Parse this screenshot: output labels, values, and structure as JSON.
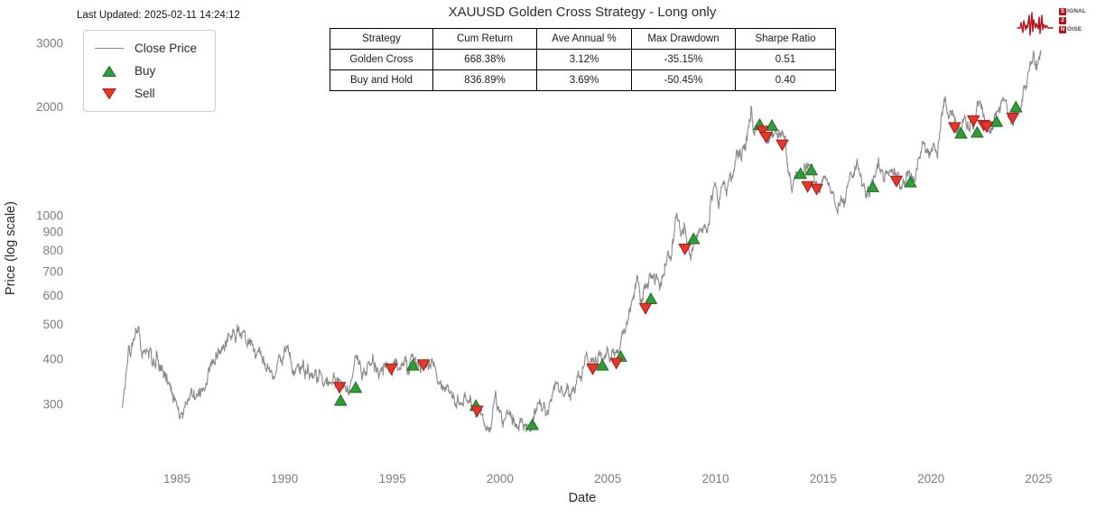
{
  "header": {
    "last_updated": "Last Updated: 2025-02-11 14:24:12",
    "title": "XAUUSD Golden Cross Strategy - Long only"
  },
  "logo": {
    "signal_first": "S",
    "signal_rest": "IGNAL",
    "two": "2",
    "noise_first": "N",
    "noise_rest": "OISE",
    "brand_color": "#b5121b"
  },
  "legend": {
    "close_price": "Close Price",
    "buy": "Buy",
    "sell": "Sell"
  },
  "stats_table": {
    "headers": [
      "Strategy",
      "Cum Return",
      "Ave Annual %",
      "Max Drawdown",
      "Sharpe Ratio"
    ],
    "rows": [
      [
        "Golden Cross",
        "668.38%",
        "3.12%",
        "-35.15%",
        "0.51"
      ],
      [
        "Buy and Hold",
        "836.89%",
        "3.69%",
        "-50.45%",
        "0.40"
      ]
    ]
  },
  "chart_data": {
    "type": "line",
    "title": "XAUUSD Golden Cross Strategy - Long only",
    "xlabel": "Date",
    "ylabel": "Price (log scale)",
    "yscale": "log",
    "grid": false,
    "legend_position": "upper left",
    "x_ticks": [
      1985,
      1990,
      1995,
      2000,
      2005,
      2010,
      2015,
      2020,
      2025
    ],
    "y_ticks": [
      3000,
      2000,
      1000,
      900,
      800,
      700,
      600,
      500,
      400,
      300
    ],
    "xlim": [
      1982.0,
      2027.5
    ],
    "ylim": [
      230,
      3300
    ],
    "line_color": "#8a8a8a",
    "buy_color": "#2f9e38",
    "buy_edge_color": "#1e6b23",
    "sell_color": "#ea352b",
    "sell_edge_color": "#9c1f17",
    "close_price_anchors": [
      [
        1982.45,
        296
      ],
      [
        1982.6,
        330
      ],
      [
        1982.75,
        430
      ],
      [
        1982.85,
        400
      ],
      [
        1983.1,
        490
      ],
      [
        1983.35,
        415
      ],
      [
        1983.6,
        420
      ],
      [
        1983.9,
        382
      ],
      [
        1984.2,
        388
      ],
      [
        1984.6,
        340
      ],
      [
        1985.15,
        288
      ],
      [
        1985.6,
        325
      ],
      [
        1986.0,
        335
      ],
      [
        1986.3,
        340
      ],
      [
        1986.7,
        390
      ],
      [
        1987.0,
        402
      ],
      [
        1987.4,
        450
      ],
      [
        1987.7,
        462
      ],
      [
        1987.95,
        488
      ],
      [
        1988.3,
        450
      ],
      [
        1988.6,
        428
      ],
      [
        1989.0,
        398
      ],
      [
        1989.45,
        362
      ],
      [
        1989.8,
        398
      ],
      [
        1990.1,
        408
      ],
      [
        1990.45,
        362
      ],
      [
        1990.62,
        388
      ],
      [
        1991.0,
        372
      ],
      [
        1991.3,
        358
      ],
      [
        1991.7,
        358
      ],
      [
        1992.0,
        352
      ],
      [
        1992.3,
        340
      ],
      [
        1992.7,
        338
      ],
      [
        1993.0,
        328
      ],
      [
        1993.35,
        392
      ],
      [
        1993.6,
        370
      ],
      [
        1993.85,
        390
      ],
      [
        1994.2,
        382
      ],
      [
        1994.6,
        388
      ],
      [
        1995.0,
        376
      ],
      [
        1995.4,
        388
      ],
      [
        1995.8,
        384
      ],
      [
        1996.1,
        412
      ],
      [
        1996.5,
        388
      ],
      [
        1996.9,
        368
      ],
      [
        1997.3,
        342
      ],
      [
        1997.7,
        322
      ],
      [
        1998.05,
        296
      ],
      [
        1998.4,
        300
      ],
      [
        1998.75,
        292
      ],
      [
        1999.1,
        286
      ],
      [
        1999.4,
        256
      ],
      [
        1999.55,
        262
      ],
      [
        1999.78,
        322
      ],
      [
        1999.95,
        288
      ],
      [
        2000.3,
        280
      ],
      [
        2000.7,
        274
      ],
      [
        2001.0,
        266
      ],
      [
        2001.3,
        258
      ],
      [
        2001.55,
        272
      ],
      [
        2001.75,
        290
      ],
      [
        2002.0,
        282
      ],
      [
        2002.4,
        312
      ],
      [
        2002.8,
        322
      ],
      [
        2003.1,
        352
      ],
      [
        2003.35,
        330
      ],
      [
        2003.7,
        360
      ],
      [
        2003.95,
        408
      ],
      [
        2004.3,
        388
      ],
      [
        2004.6,
        398
      ],
      [
        2004.95,
        438
      ],
      [
        2005.2,
        428
      ],
      [
        2005.55,
        432
      ],
      [
        2005.9,
        510
      ],
      [
        2006.1,
        560
      ],
      [
        2006.38,
        715
      ],
      [
        2006.55,
        580
      ],
      [
        2006.8,
        620
      ],
      [
        2007.1,
        650
      ],
      [
        2007.45,
        662
      ],
      [
        2007.7,
        700
      ],
      [
        2007.95,
        800
      ],
      [
        2008.2,
        990
      ],
      [
        2008.4,
        880
      ],
      [
        2008.55,
        930
      ],
      [
        2008.75,
        790
      ],
      [
        2008.85,
        740
      ],
      [
        2009.05,
        900
      ],
      [
        2009.3,
        890
      ],
      [
        2009.6,
        950
      ],
      [
        2009.95,
        1195
      ],
      [
        2010.15,
        1105
      ],
      [
        2010.45,
        1200
      ],
      [
        2010.75,
        1300
      ],
      [
        2011.0,
        1395
      ],
      [
        2011.2,
        1420
      ],
      [
        2011.45,
        1520
      ],
      [
        2011.65,
        1895
      ],
      [
        2011.75,
        1700
      ],
      [
        2011.9,
        1750
      ],
      [
        2012.05,
        1770
      ],
      [
        2012.2,
        1720
      ],
      [
        2012.4,
        1590
      ],
      [
        2012.65,
        1600
      ],
      [
        2012.8,
        1780
      ],
      [
        2013.0,
        1665
      ],
      [
        2013.25,
        1565
      ],
      [
        2013.35,
        1390
      ],
      [
        2013.55,
        1230
      ],
      [
        2013.7,
        1330
      ],
      [
        2013.95,
        1220
      ],
      [
        2014.2,
        1360
      ],
      [
        2014.5,
        1300
      ],
      [
        2014.85,
        1150
      ],
      [
        2015.05,
        1290
      ],
      [
        2015.3,
        1180
      ],
      [
        2015.6,
        1085
      ],
      [
        2015.95,
        1055
      ],
      [
        2016.2,
        1240
      ],
      [
        2016.55,
        1360
      ],
      [
        2016.75,
        1250
      ],
      [
        2016.95,
        1130
      ],
      [
        2017.3,
        1255
      ],
      [
        2017.65,
        1340
      ],
      [
        2017.95,
        1290
      ],
      [
        2018.3,
        1350
      ],
      [
        2018.65,
        1180
      ],
      [
        2018.95,
        1280
      ],
      [
        2019.3,
        1290
      ],
      [
        2019.6,
        1510
      ],
      [
        2019.9,
        1470
      ],
      [
        2020.15,
        1580
      ],
      [
        2020.3,
        1470
      ],
      [
        2020.6,
        2060
      ],
      [
        2020.8,
        1870
      ],
      [
        2021.0,
        1940
      ],
      [
        2021.2,
        1700
      ],
      [
        2021.45,
        1900
      ],
      [
        2021.7,
        1790
      ],
      [
        2021.9,
        1800
      ],
      [
        2022.15,
        2040
      ],
      [
        2022.45,
        1830
      ],
      [
        2022.6,
        1720
      ],
      [
        2022.78,
        1630
      ],
      [
        2023.0,
        1870
      ],
      [
        2023.15,
        1820
      ],
      [
        2023.35,
        2030
      ],
      [
        2023.6,
        1920
      ],
      [
        2023.8,
        1840
      ],
      [
        2023.95,
        2060
      ],
      [
        2024.15,
        2040
      ],
      [
        2024.3,
        2300
      ],
      [
        2024.45,
        2330
      ],
      [
        2024.6,
        2480
      ],
      [
        2024.8,
        2680
      ],
      [
        2024.95,
        2620
      ],
      [
        2025.05,
        2780
      ],
      [
        2025.12,
        2900
      ]
    ],
    "buy_signals": [
      [
        1992.6,
        306
      ],
      [
        1993.3,
        332
      ],
      [
        1995.95,
        383
      ],
      [
        1998.88,
        296
      ],
      [
        2001.5,
        262
      ],
      [
        2004.75,
        383
      ],
      [
        2005.6,
        405
      ],
      [
        2007.0,
        585
      ],
      [
        2008.98,
        858
      ],
      [
        2012.05,
        1778
      ],
      [
        2012.62,
        1768
      ],
      [
        2013.95,
        1300
      ],
      [
        2014.45,
        1330
      ],
      [
        2017.3,
        1195
      ],
      [
        2019.05,
        1232
      ],
      [
        2021.4,
        1682
      ],
      [
        2022.15,
        1692
      ],
      [
        2023.05,
        1812
      ],
      [
        2023.95,
        1988
      ]
    ],
    "sell_signals": [
      [
        1992.55,
        336
      ],
      [
        1994.95,
        378
      ],
      [
        1996.45,
        388
      ],
      [
        1998.93,
        289
      ],
      [
        2004.3,
        378
      ],
      [
        2005.4,
        392
      ],
      [
        2006.75,
        556
      ],
      [
        2008.58,
        812
      ],
      [
        2012.18,
        1722
      ],
      [
        2012.35,
        1658
      ],
      [
        2013.1,
        1578
      ],
      [
        2014.28,
        1210
      ],
      [
        2014.7,
        1190
      ],
      [
        2018.4,
        1252
      ],
      [
        2021.1,
        1762
      ],
      [
        2021.98,
        1842
      ],
      [
        2022.45,
        1788
      ],
      [
        2022.6,
        1772
      ],
      [
        2023.8,
        1872
      ]
    ]
  }
}
